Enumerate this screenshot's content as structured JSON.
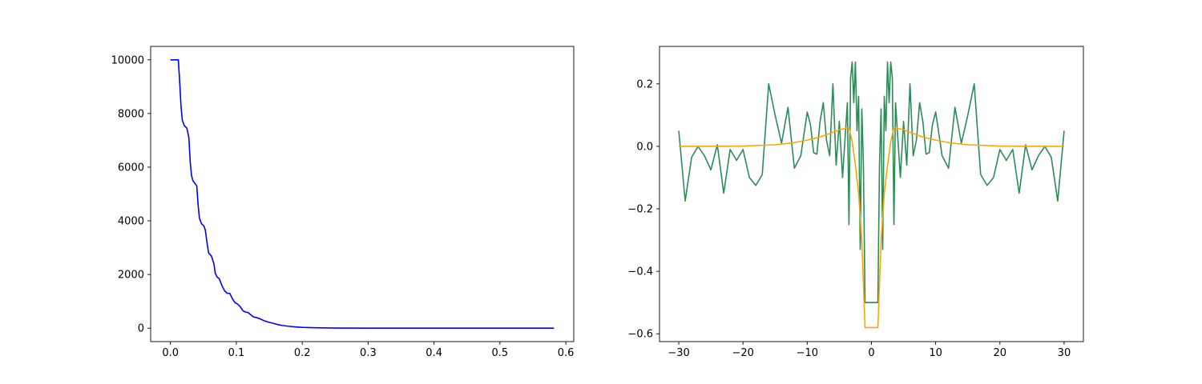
{
  "chart_data": [
    {
      "type": "line",
      "title": "",
      "xlabel": "",
      "ylabel": "",
      "xlim": [
        -0.03,
        0.612
      ],
      "ylim": [
        -500,
        10500
      ],
      "xticks": [
        0.0,
        0.1,
        0.2,
        0.3,
        0.4,
        0.5,
        0.6
      ],
      "xtick_labels": [
        "0.0",
        "0.1",
        "0.2",
        "0.3",
        "0.4",
        "0.5",
        "0.6"
      ],
      "yticks": [
        0,
        2000,
        4000,
        6000,
        8000,
        10000
      ],
      "ytick_labels": [
        "0",
        "2000",
        "4000",
        "6000",
        "8000",
        "10000"
      ],
      "grid": false,
      "series": [
        {
          "color": "#0000ff",
          "x": [
            0.0,
            0.012,
            0.014,
            0.016,
            0.018,
            0.021,
            0.025,
            0.028,
            0.03,
            0.032,
            0.034,
            0.037,
            0.04,
            0.042,
            0.044,
            0.047,
            0.051,
            0.053,
            0.056,
            0.058,
            0.062,
            0.066,
            0.068,
            0.071,
            0.074,
            0.078,
            0.082,
            0.086,
            0.09,
            0.094,
            0.098,
            0.102,
            0.106,
            0.11,
            0.114,
            0.118,
            0.122,
            0.126,
            0.13,
            0.136,
            0.142,
            0.148,
            0.155,
            0.162,
            0.17,
            0.18,
            0.19,
            0.2,
            0.22,
            0.25,
            0.3,
            0.35,
            0.4,
            0.45,
            0.5,
            0.55,
            0.582
          ],
          "y": [
            10000,
            10000,
            9200,
            8300,
            7750,
            7550,
            7450,
            7100,
            6200,
            5700,
            5500,
            5400,
            5300,
            4600,
            4100,
            3900,
            3800,
            3650,
            3100,
            2800,
            2700,
            2400,
            2050,
            1900,
            1850,
            1600,
            1400,
            1300,
            1300,
            1100,
            950,
            900,
            800,
            650,
            600,
            580,
            500,
            420,
            400,
            350,
            280,
            230,
            190,
            140,
            100,
            70,
            45,
            30,
            15,
            6,
            2,
            1,
            0,
            0,
            0,
            0,
            0
          ]
        }
      ]
    },
    {
      "type": "line",
      "title": "",
      "xlabel": "",
      "ylabel": "",
      "xlim": [
        -33,
        33
      ],
      "ylim": [
        -0.625,
        0.32
      ],
      "xticks": [
        -30,
        -20,
        -10,
        0,
        10,
        20,
        30
      ],
      "xtick_labels": [
        "−30",
        "−20",
        "−10",
        "0",
        "10",
        "20",
        "30"
      ],
      "yticks": [
        -0.6,
        -0.4,
        -0.2,
        0.0,
        0.2
      ],
      "ytick_labels": [
        "−0.6",
        "−0.4",
        "−0.2",
        "0.0",
        "0.2"
      ],
      "grid": false,
      "series": [
        {
          "color": "#2e8b57",
          "x": [
            -30,
            -29,
            -28,
            -27,
            -26,
            -25,
            -24,
            -23,
            -22,
            -21,
            -20,
            -19,
            -18,
            -17,
            -16,
            -15,
            -14,
            -13,
            -12,
            -11,
            -10,
            -9.5,
            -9,
            -8.5,
            -8,
            -7.5,
            -7,
            -6.5,
            -6,
            -5.5,
            -5,
            -4.5,
            -4,
            -3.75,
            -3.5,
            -3.25,
            -3,
            -2.75,
            -2.5,
            -2.25,
            -2,
            -1.75,
            -1.5,
            -1.25,
            -1,
            1,
            1.25,
            1.5,
            1.75,
            2,
            2.25,
            2.5,
            2.75,
            3,
            3.25,
            3.5,
            3.75,
            4,
            4.5,
            5,
            5.5,
            6,
            6.5,
            7,
            7.5,
            8,
            8.5,
            9,
            9.5,
            10,
            11,
            12,
            13,
            14,
            15,
            16,
            17,
            18,
            19,
            20,
            21,
            22,
            23,
            24,
            25,
            26,
            27,
            28,
            29,
            30
          ],
          "y": [
            0.05,
            -0.175,
            -0.035,
            0.0,
            -0.03,
            -0.075,
            0.005,
            -0.15,
            -0.01,
            -0.045,
            -0.01,
            -0.1,
            -0.125,
            -0.09,
            0.2,
            0.1,
            0.01,
            0.125,
            -0.07,
            -0.03,
            0.11,
            0.07,
            -0.02,
            -0.025,
            0.08,
            0.14,
            0.02,
            -0.03,
            0.2,
            -0.06,
            0.08,
            -0.1,
            0.06,
            0.14,
            -0.25,
            0.22,
            0.27,
            0.14,
            0.27,
            0.05,
            0.16,
            -0.33,
            0.12,
            -0.06,
            -0.5,
            -0.5,
            -0.06,
            0.12,
            -0.33,
            0.16,
            0.05,
            0.27,
            0.14,
            0.27,
            0.22,
            -0.25,
            0.14,
            0.06,
            -0.1,
            0.08,
            -0.06,
            0.2,
            -0.03,
            0.02,
            0.14,
            0.08,
            -0.025,
            -0.02,
            0.07,
            0.11,
            -0.03,
            -0.07,
            0.125,
            0.01,
            0.1,
            0.2,
            -0.09,
            -0.125,
            -0.1,
            -0.01,
            -0.045,
            -0.01,
            -0.15,
            0.005,
            -0.075,
            -0.03,
            0.0,
            -0.035,
            -0.175,
            0.05
          ]
        },
        {
          "color": "#ffa500",
          "x": [
            -30,
            -25,
            -20,
            -15,
            -12,
            -10,
            -8,
            -6,
            -5,
            -4,
            -3.5,
            -3,
            -2.5,
            -2,
            -1.5,
            -1,
            1,
            1.5,
            2,
            2.5,
            3,
            3.5,
            4,
            5,
            6,
            8,
            10,
            12,
            15,
            20,
            25,
            30
          ],
          "y": [
            0.0,
            0.0,
            0.001,
            0.005,
            0.012,
            0.02,
            0.03,
            0.045,
            0.053,
            0.058,
            0.06,
            0.015,
            -0.06,
            -0.15,
            -0.3,
            -0.58,
            -0.58,
            -0.3,
            -0.15,
            -0.06,
            0.015,
            0.06,
            0.058,
            0.053,
            0.045,
            0.03,
            0.02,
            0.012,
            0.005,
            0.001,
            0.0,
            0.0
          ]
        }
      ]
    }
  ]
}
